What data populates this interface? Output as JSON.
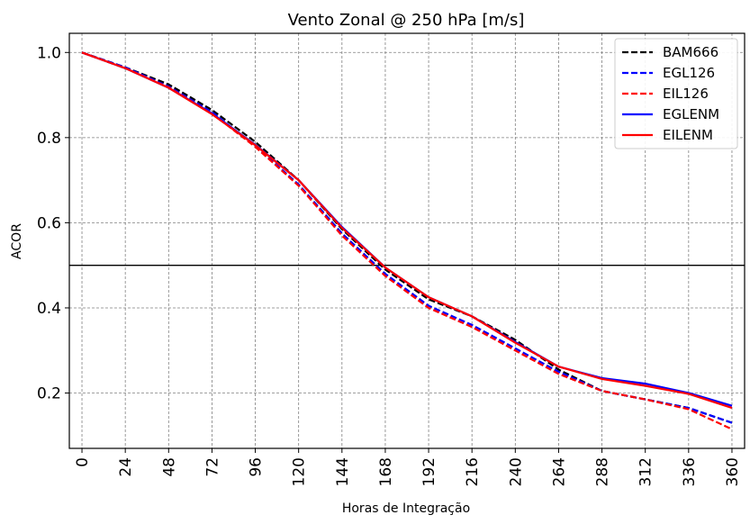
{
  "chart_data": {
    "type": "line",
    "title": "Vento Zonal @ 250 hPa [m/s]",
    "xlabel": "Horas de Integração",
    "ylabel": "ACOR",
    "x": [
      0,
      24,
      48,
      72,
      96,
      120,
      144,
      168,
      192,
      216,
      240,
      264,
      288,
      312,
      336,
      360
    ],
    "x_tick_labels": [
      "0",
      "24",
      "48",
      "72",
      "96",
      "120",
      "144",
      "168",
      "192",
      "216",
      "240",
      "264",
      "288",
      "312",
      "336",
      "360"
    ],
    "y_ticks": [
      0.2,
      0.4,
      0.6,
      0.8,
      1.0
    ],
    "y_tick_labels": [
      "0.2",
      "0.4",
      "0.6",
      "0.8",
      "1.0"
    ],
    "xlim": [
      -7,
      367
    ],
    "ylim": [
      0.07,
      1.045
    ],
    "grid": true,
    "legend_position": "top-right",
    "reference_line": 0.5,
    "series": [
      {
        "name": "BAM666",
        "color": "#000000",
        "style": "dashed",
        "values": [
          1.0,
          0.965,
          0.925,
          0.865,
          0.79,
          0.7,
          0.585,
          0.49,
          0.42,
          0.38,
          0.325,
          0.255,
          0.205,
          0.185,
          0.165,
          0.13
        ]
      },
      {
        "name": "EGL126",
        "color": "#0000ff",
        "style": "dashed",
        "values": [
          1.0,
          0.965,
          0.92,
          0.86,
          0.78,
          0.69,
          0.575,
          0.48,
          0.405,
          0.36,
          0.305,
          0.25,
          0.205,
          0.185,
          0.165,
          0.13
        ]
      },
      {
        "name": "EIL126",
        "color": "#ff0000",
        "style": "dashed",
        "values": [
          1.0,
          0.963,
          0.918,
          0.857,
          0.778,
          0.687,
          0.57,
          0.475,
          0.4,
          0.355,
          0.3,
          0.245,
          0.205,
          0.185,
          0.162,
          0.115
        ]
      },
      {
        "name": "EGLENM",
        "color": "#0000ff",
        "style": "solid",
        "values": [
          1.0,
          0.963,
          0.917,
          0.857,
          0.783,
          0.7,
          0.59,
          0.495,
          0.425,
          0.38,
          0.32,
          0.262,
          0.235,
          0.222,
          0.2,
          0.17
        ]
      },
      {
        "name": "EILENM",
        "color": "#ff0000",
        "style": "solid",
        "values": [
          1.0,
          0.963,
          0.917,
          0.855,
          0.782,
          0.7,
          0.588,
          0.495,
          0.425,
          0.38,
          0.318,
          0.262,
          0.233,
          0.217,
          0.198,
          0.165
        ]
      }
    ]
  }
}
